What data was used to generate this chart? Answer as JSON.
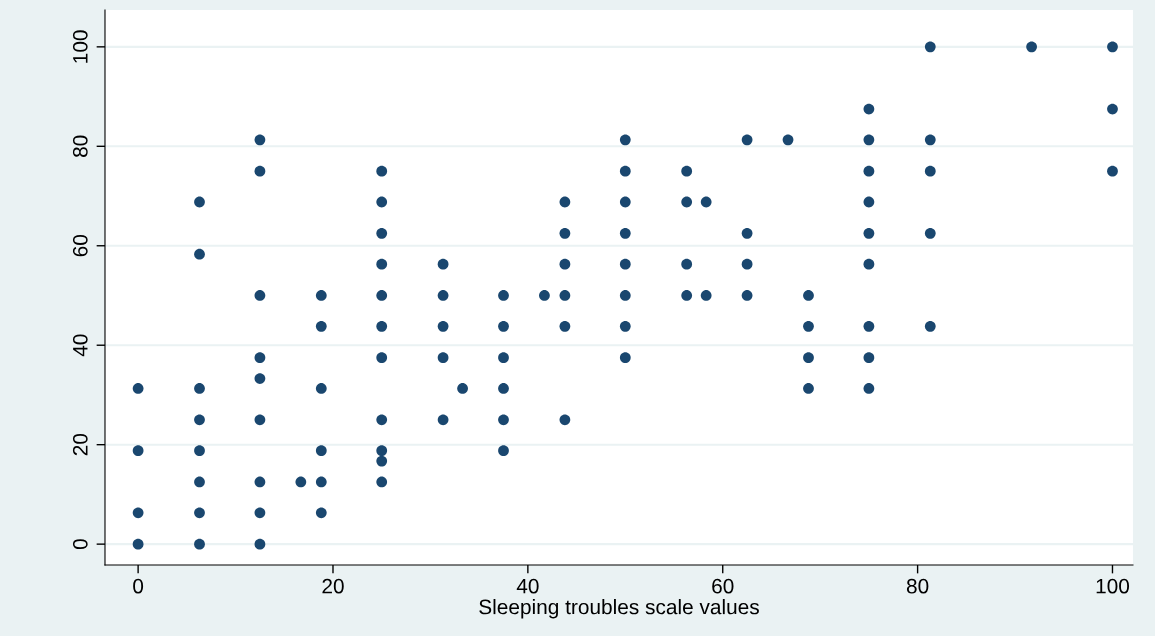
{
  "chart_data": {
    "type": "scatter",
    "xlabel": "Sleeping troubles scale values",
    "x": [
      0,
      0,
      0,
      0,
      6.3,
      6.3,
      6.3,
      6.3,
      6.3,
      6.3,
      6.3,
      6.3,
      12.5,
      12.5,
      12.5,
      12.5,
      12.5,
      12.5,
      12.5,
      12.5,
      12.5,
      16.7,
      18.8,
      18.8,
      18.8,
      18.8,
      18.8,
      18.8,
      25,
      25,
      25,
      25,
      25,
      25,
      25,
      25,
      25,
      25,
      25,
      31.3,
      31.3,
      31.3,
      31.3,
      31.3,
      33.3,
      37.5,
      37.5,
      37.5,
      37.5,
      37.5,
      37.5,
      41.7,
      43.8,
      43.8,
      43.8,
      43.8,
      43.8,
      43.8,
      50,
      50,
      50,
      50,
      50,
      50,
      50,
      50,
      56.3,
      56.3,
      56.3,
      56.3,
      58.3,
      58.3,
      62.5,
      62.5,
      62.5,
      62.5,
      66.7,
      68.8,
      68.8,
      68.8,
      68.8,
      75,
      75,
      75,
      75,
      75,
      75,
      75,
      75,
      75,
      81.3,
      81.3,
      81.3,
      81.3,
      81.3,
      91.7,
      100,
      100,
      100
    ],
    "values": [
      31.3,
      18.8,
      6.3,
      0,
      68.8,
      58.3,
      31.3,
      25,
      18.8,
      12.5,
      6.3,
      0,
      81.3,
      75,
      50,
      37.5,
      33.3,
      25,
      12.5,
      6.3,
      0,
      12.5,
      50,
      43.8,
      31.3,
      18.8,
      12.5,
      6.3,
      75,
      68.8,
      62.5,
      56.3,
      50,
      43.8,
      37.5,
      25,
      18.8,
      16.7,
      12.5,
      56.3,
      50,
      43.8,
      37.5,
      25,
      31.3,
      50,
      43.8,
      37.5,
      31.3,
      25,
      18.8,
      50,
      68.8,
      62.5,
      56.3,
      50,
      43.8,
      25,
      81.3,
      75,
      68.8,
      62.5,
      56.3,
      50,
      43.8,
      37.5,
      75,
      68.8,
      56.3,
      50,
      68.8,
      50,
      81.3,
      62.5,
      56.3,
      50,
      81.3,
      50,
      43.8,
      37.5,
      31.3,
      87.5,
      81.3,
      75,
      68.8,
      62.5,
      56.3,
      43.8,
      37.5,
      31.3,
      100,
      81.3,
      75,
      62.5,
      43.8,
      100,
      100,
      87.5,
      75
    ],
    "color": "#1a476f",
    "marker": "circle",
    "xlim": [
      -3.4,
      102.1
    ],
    "ylim": [
      -4.2,
      107.4
    ],
    "xticks": [
      0,
      20,
      40,
      60,
      80,
      100
    ],
    "yticks": [
      0,
      20,
      40,
      60,
      80,
      100
    ],
    "grid": "y",
    "legend": false
  }
}
